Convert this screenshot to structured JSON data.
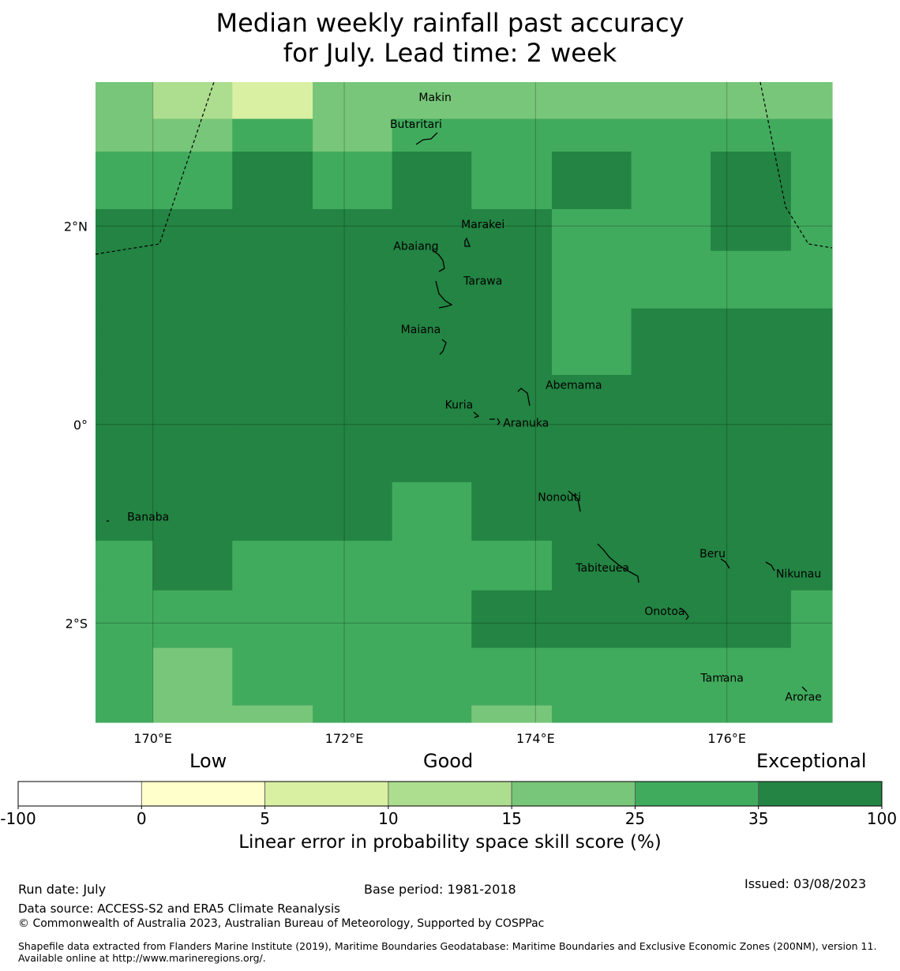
{
  "title": {
    "line1": "Median weekly rainfall past accuracy",
    "line2": "for July. Lead time: 2 week"
  },
  "map": {
    "lon_range": [
      169.4,
      177.1
    ],
    "lat_range": [
      -3.0,
      3.45
    ],
    "lon_ticks": [
      {
        "value": 170,
        "label": "170°E"
      },
      {
        "value": 172,
        "label": "172°E"
      },
      {
        "value": 174,
        "label": "174°E"
      },
      {
        "value": 176,
        "label": "176°E"
      }
    ],
    "lat_ticks": [
      {
        "value": 2,
        "label": "2°N"
      },
      {
        "value": 0,
        "label": "0°"
      },
      {
        "value": -2,
        "label": "2°S"
      }
    ],
    "grid": true,
    "lon_edges": [
      169.4,
      170.0,
      170.83,
      171.67,
      172.5,
      173.33,
      174.17,
      175.0,
      175.83,
      176.67,
      177.1
    ],
    "lat_edges": [
      3.45,
      3.08,
      2.75,
      2.17,
      1.75,
      1.17,
      0.92,
      0.5,
      0.08,
      -0.58,
      -1.17,
      -1.67,
      -2.25,
      -2.83,
      -3.0
    ],
    "cells": [
      [
        4,
        3,
        2,
        4,
        4,
        4,
        4,
        4,
        4,
        4
      ],
      [
        4,
        4,
        5,
        4,
        5,
        5,
        5,
        5,
        5,
        5
      ],
      [
        5,
        5,
        6,
        5,
        6,
        5,
        6,
        5,
        6,
        5
      ],
      [
        6,
        6,
        6,
        6,
        6,
        6,
        5,
        5,
        6,
        5
      ],
      [
        6,
        6,
        6,
        6,
        6,
        6,
        5,
        5,
        5,
        5
      ],
      [
        6,
        6,
        6,
        6,
        6,
        6,
        5,
        6,
        6,
        6
      ],
      [
        6,
        6,
        6,
        6,
        6,
        6,
        5,
        6,
        6,
        6
      ],
      [
        6,
        6,
        6,
        6,
        6,
        6,
        6,
        6,
        6,
        6
      ],
      [
        6,
        6,
        6,
        6,
        6,
        6,
        6,
        6,
        6,
        6
      ],
      [
        6,
        6,
        6,
        6,
        5,
        6,
        6,
        6,
        6,
        6
      ],
      [
        5,
        6,
        5,
        5,
        5,
        5,
        6,
        6,
        6,
        6
      ],
      [
        5,
        5,
        5,
        5,
        5,
        6,
        6,
        6,
        6,
        5
      ],
      [
        5,
        4,
        5,
        5,
        5,
        5,
        5,
        5,
        5,
        5
      ],
      [
        5,
        4,
        4,
        5,
        5,
        4,
        5,
        5,
        5,
        5
      ]
    ],
    "islands": [
      {
        "name": "Makin",
        "lon": 172.95,
        "lat": 3.3
      },
      {
        "name": "Butaritari",
        "lon": 172.75,
        "lat": 3.03
      },
      {
        "name": "Marakei",
        "lon": 173.45,
        "lat": 2.02
      },
      {
        "name": "Abaiang",
        "lon": 172.75,
        "lat": 1.8
      },
      {
        "name": "Tarawa",
        "lon": 173.45,
        "lat": 1.45
      },
      {
        "name": "Maiana",
        "lon": 172.8,
        "lat": 0.96
      },
      {
        "name": "Abemama",
        "lon": 174.4,
        "lat": 0.4
      },
      {
        "name": "Kuria",
        "lon": 173.2,
        "lat": 0.2
      },
      {
        "name": "Aranuka",
        "lon": 173.9,
        "lat": 0.02
      },
      {
        "name": "Nonouti",
        "lon": 174.25,
        "lat": -0.73
      },
      {
        "name": "Banaba",
        "lon": 169.95,
        "lat": -0.93
      },
      {
        "name": "Beru",
        "lon": 175.85,
        "lat": -1.3
      },
      {
        "name": "Tabiteuea",
        "lon": 174.7,
        "lat": -1.44
      },
      {
        "name": "Nikunau",
        "lon": 176.75,
        "lat": -1.5
      },
      {
        "name": "Onotoa",
        "lon": 175.35,
        "lat": -1.88
      },
      {
        "name": "Tamana",
        "lon": 175.95,
        "lat": -2.55
      },
      {
        "name": "Arorae",
        "lon": 176.8,
        "lat": -2.74
      }
    ]
  },
  "legend": {
    "words": {
      "low": "Low",
      "good": "Good",
      "exceptional": "Exceptional"
    },
    "boundaries": [
      "-100",
      "0",
      "5",
      "10",
      "15",
      "25",
      "35",
      "100"
    ],
    "colors": [
      "#ffffff",
      "#ffffcc",
      "#d9f0a3",
      "#addd8e",
      "#78c679",
      "#41ab5d",
      "#238443"
    ],
    "label": "Linear error in probability space skill score (%)"
  },
  "footer": {
    "run_date": "Run date: July",
    "base_period": "Base period: 1981-2018",
    "issued": "Issued: 03/08/2023",
    "data_source": "Data source: ACCESS-S2 and ERA5 Climate Reanalysis",
    "copyright": "© Commonwealth of Australia 2023, Australian Bureau of Meteorology, Supported by COSPPac",
    "shapefile": "Shapefile data extracted from Flanders Marine Institute (2019), Maritime Boundaries Geodatabase: Maritime Boundaries and Exclusive Economic Zones (200NM), version 11. Available online at http://www.marineregions.org/."
  }
}
